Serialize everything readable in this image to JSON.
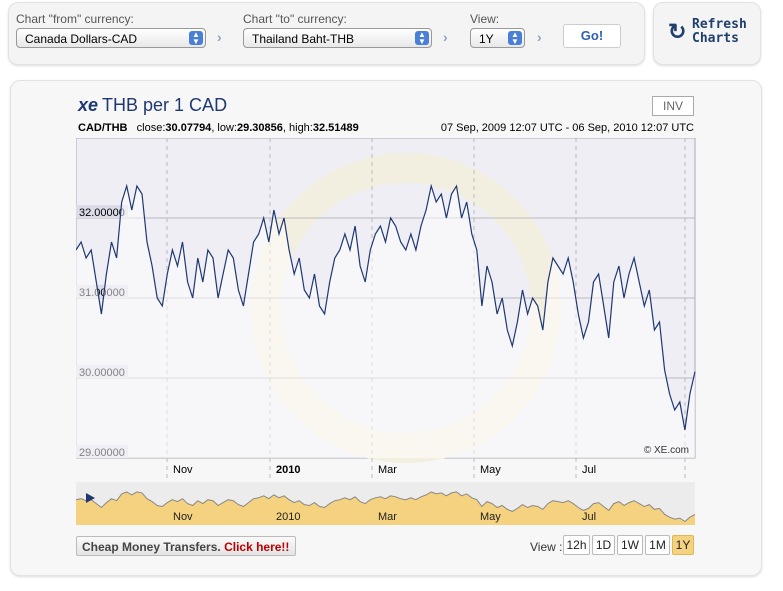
{
  "controls": {
    "from_label": "Chart \"from\" currency:",
    "from_value": "Canada Dollars-CAD",
    "to_label": "Chart \"to\" currency:",
    "to_value": "Thailand Baht-THB",
    "view_label": "View:",
    "view_value": "1Y",
    "go_label": "Go!",
    "refresh_label_1": "Refresh",
    "refresh_label_2": "Charts"
  },
  "chart_header": {
    "logo": "xe",
    "title": "THB per 1 CAD",
    "inv_label": "INV",
    "pair": "CAD/THB",
    "close_label": "close:",
    "close": "30.07794",
    "low_label": ", low:",
    "low": "29.30856",
    "high_label": ", high:",
    "high": "32.51489",
    "range": "07 Sep, 2009 12:07 UTC - 06 Sep, 2010 12:07 UTC",
    "copyright": "© XE.com"
  },
  "chart_data": {
    "type": "line",
    "title": "THB per 1 CAD",
    "xlabel": "",
    "ylabel": "",
    "ylim": [
      29,
      33
    ],
    "y_ticks": [
      "29.00000",
      "30.00000",
      "31.00000",
      "32.00000"
    ],
    "x_ticks": [
      "Nov",
      "2010",
      "Mar",
      "May",
      "Jul"
    ],
    "x_range": [
      "07 Sep, 2009",
      "06 Sep, 2010"
    ],
    "series": [
      {
        "name": "CAD/THB",
        "values": [
          31.6,
          31.7,
          31.5,
          31.6,
          31.2,
          30.8,
          31.3,
          31.7,
          31.5,
          32.2,
          32.4,
          32.1,
          32.4,
          32.3,
          31.7,
          31.4,
          31.0,
          30.9,
          31.3,
          31.6,
          31.4,
          31.7,
          31.2,
          31.0,
          31.5,
          31.2,
          31.6,
          31.5,
          31.0,
          31.3,
          31.6,
          31.5,
          31.1,
          30.9,
          31.3,
          31.7,
          31.8,
          32.0,
          31.7,
          32.1,
          31.8,
          32.0,
          31.6,
          31.3,
          31.5,
          31.1,
          31.0,
          31.3,
          30.9,
          30.8,
          31.2,
          31.5,
          31.6,
          31.8,
          31.6,
          31.9,
          31.4,
          31.2,
          31.6,
          31.8,
          31.9,
          31.7,
          32.0,
          31.9,
          31.7,
          31.6,
          31.8,
          31.6,
          31.9,
          32.1,
          32.4,
          32.2,
          32.3,
          32.0,
          32.3,
          32.4,
          32.0,
          32.2,
          31.8,
          31.6,
          30.9,
          31.4,
          31.2,
          30.8,
          31.0,
          30.6,
          30.4,
          30.7,
          31.1,
          30.8,
          31.0,
          30.9,
          30.6,
          31.2,
          31.5,
          31.4,
          31.3,
          31.5,
          31.2,
          30.8,
          30.5,
          30.7,
          31.2,
          31.3,
          30.9,
          30.5,
          31.2,
          31.4,
          31.0,
          31.3,
          31.5,
          31.2,
          30.9,
          31.1,
          30.6,
          30.7,
          30.1,
          29.8,
          29.6,
          29.7,
          29.35,
          29.8,
          30.08
        ]
      }
    ]
  },
  "footer": {
    "transfer_text": "Cheap Money Transfers.",
    "transfer_link": "Click here!!",
    "view_label": "View :",
    "view_buttons": [
      "12h",
      "1D",
      "1W",
      "1M",
      "1Y"
    ],
    "active": "1Y"
  },
  "colors": {
    "line": "#1f3872",
    "overview_fill": "#f5d27f",
    "accent": "#2c5fb5"
  }
}
